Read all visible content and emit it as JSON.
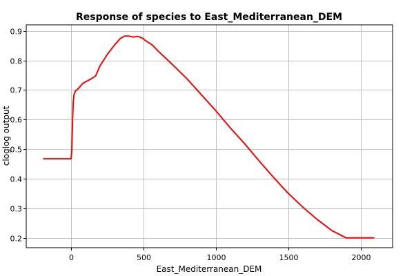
{
  "chart_data": {
    "type": "line",
    "title": "Response of species to East_Mediterranean_DEM",
    "xlabel": "East_Mediterranean_DEM",
    "ylabel": "cloglog output",
    "xlim": [
      -310,
      2220
    ],
    "ylim": [
      0.168,
      0.92
    ],
    "x_ticks": [
      0,
      500,
      1000,
      1500,
      2000
    ],
    "y_ticks": [
      0.2,
      0.3,
      0.4,
      0.5,
      0.6,
      0.7,
      0.8,
      0.9
    ],
    "grid": true,
    "series": [
      {
        "color": "#ff0000",
        "x": [
          -190,
          0,
          5,
          10,
          15,
          20,
          30,
          50,
          80,
          100,
          140,
          170,
          200,
          250,
          300,
          340,
          370,
          400,
          430,
          460,
          490,
          510,
          560,
          600,
          700,
          800,
          900,
          1000,
          1100,
          1200,
          1300,
          1400,
          1500,
          1600,
          1700,
          1800,
          1900,
          2000,
          2090
        ],
        "y": [
          0.468,
          0.468,
          0.5,
          0.6,
          0.66,
          0.685,
          0.697,
          0.705,
          0.722,
          0.728,
          0.738,
          0.748,
          0.782,
          0.82,
          0.852,
          0.874,
          0.882,
          0.882,
          0.879,
          0.881,
          0.876,
          0.868,
          0.852,
          0.832,
          0.786,
          0.738,
          0.684,
          0.63,
          0.572,
          0.518,
          0.46,
          0.404,
          0.351,
          0.305,
          0.263,
          0.226,
          0.201,
          0.201,
          0.201
        ]
      }
    ]
  }
}
